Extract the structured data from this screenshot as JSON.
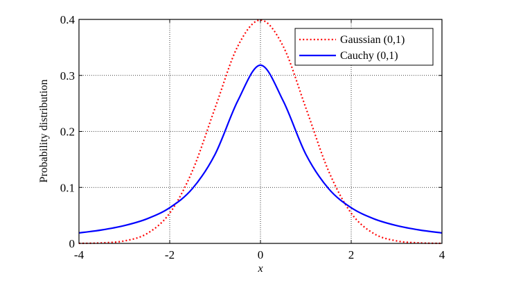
{
  "chart_data": {
    "type": "line",
    "title": "",
    "xlabel": "x",
    "ylabel": "Probability distribution",
    "xlim": [
      -4,
      4
    ],
    "ylim": [
      0,
      0.4
    ],
    "x_ticks": [
      -4,
      -2,
      0,
      2,
      4
    ],
    "y_ticks": [
      0,
      0.1,
      0.2,
      0.3,
      0.4
    ],
    "x_tick_labels": [
      "-4",
      "-2",
      "0",
      "2",
      "4"
    ],
    "y_tick_labels": [
      "0",
      "0.1",
      "0.2",
      "0.3",
      "0.4"
    ],
    "grid": true,
    "legend_position": "top-right",
    "x": [
      -4,
      -3.5,
      -3,
      -2.5,
      -2,
      -1.5,
      -1,
      -0.5,
      0,
      0.5,
      1,
      1.5,
      2,
      2.5,
      3,
      3.5,
      4
    ],
    "series": [
      {
        "name": "Gaussian (0,1)",
        "style": "dotted",
        "color": "#ff0000",
        "values": [
          0.0001,
          0.0009,
          0.0044,
          0.0175,
          0.054,
          0.1295,
          0.242,
          0.3521,
          0.3989,
          0.3521,
          0.242,
          0.1295,
          0.054,
          0.0175,
          0.0044,
          0.0009,
          0.0001
        ]
      },
      {
        "name": "Cauchy (0,1)",
        "style": "solid",
        "color": "#0000ff",
        "values": [
          0.0187,
          0.024,
          0.0318,
          0.0439,
          0.0637,
          0.0979,
          0.1592,
          0.2546,
          0.3183,
          0.2546,
          0.1592,
          0.0979,
          0.0637,
          0.0439,
          0.0318,
          0.024,
          0.0187
        ]
      }
    ]
  }
}
